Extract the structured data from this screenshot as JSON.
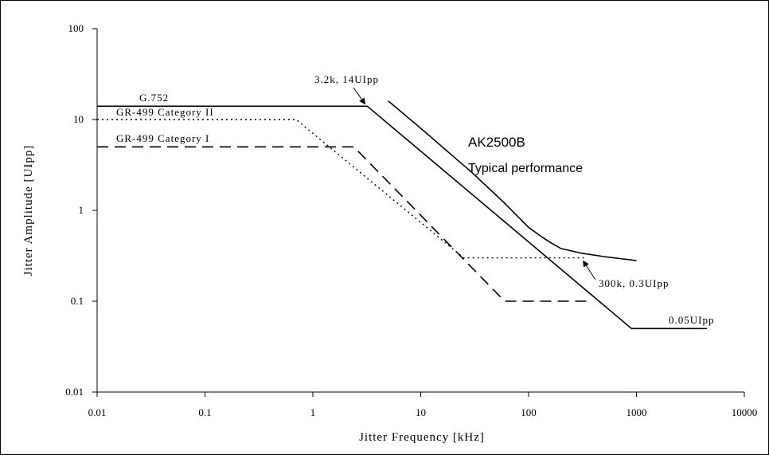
{
  "chart_data": {
    "type": "line",
    "xlabel": "Jitter Frequency [kHz]",
    "ylabel": "Jitter Amplitude [UIpp]",
    "xscale": "log",
    "yscale": "log",
    "xlim": [
      0.01,
      10000
    ],
    "ylim": [
      0.01,
      100
    ],
    "x_ticks": [
      {
        "value": 0.01,
        "label": "0.01"
      },
      {
        "value": 0.1,
        "label": "0.1"
      },
      {
        "value": 1,
        "label": "1"
      },
      {
        "value": 10,
        "label": "10"
      },
      {
        "value": 100,
        "label": "100"
      },
      {
        "value": 1000,
        "label": "1000"
      },
      {
        "value": 10000,
        "label": "10000"
      }
    ],
    "y_ticks": [
      {
        "value": 0.01,
        "label": "0.01"
      },
      {
        "value": 0.1,
        "label": "0.1"
      },
      {
        "value": 1,
        "label": "1"
      },
      {
        "value": 10,
        "label": "10"
      },
      {
        "value": 100,
        "label": "100"
      }
    ],
    "grid": false,
    "series": [
      {
        "name": "G.752",
        "style": "solid",
        "width": 1.6,
        "color": "#000000",
        "x": [
          0.01,
          3.2,
          900,
          4500
        ],
        "y": [
          14,
          14,
          0.05,
          0.05
        ]
      },
      {
        "name": "GR-499 Category II",
        "style": "dotted",
        "width": 1.4,
        "color": "#000000",
        "x": [
          0.01,
          0.7,
          25,
          330
        ],
        "y": [
          10,
          10,
          0.3,
          0.3
        ]
      },
      {
        "name": "GR-499 Category I",
        "style": "dashed",
        "width": 1.6,
        "color": "#000000",
        "x": [
          0.01,
          2.4,
          60,
          350
        ],
        "y": [
          5,
          5,
          0.1,
          0.1
        ]
      },
      {
        "name": "AK2500B",
        "style": "solid",
        "width": 1.6,
        "color": "#000000",
        "x": [
          5,
          10,
          30,
          60,
          100,
          130,
          160,
          200,
          300,
          500,
          1000
        ],
        "y": [
          16,
          8,
          2.6,
          1.2,
          0.65,
          0.52,
          0.44,
          0.38,
          0.34,
          0.31,
          0.28
        ]
      }
    ],
    "annotations": {
      "g752": "G.752",
      "cat2": "GR-499 Category II",
      "cat1": "GR-499 Category I",
      "ak_title": "AK2500B",
      "ak_sub": "Typical performance",
      "corner": "3.2k, 14UIpp",
      "mid": "300k, 0.3UIpp",
      "floor": "0.05UIpp"
    },
    "annotation_points": {
      "corner": {
        "x": 3.2,
        "y": 14
      },
      "mid": {
        "x": 300,
        "y": 0.3
      }
    }
  }
}
